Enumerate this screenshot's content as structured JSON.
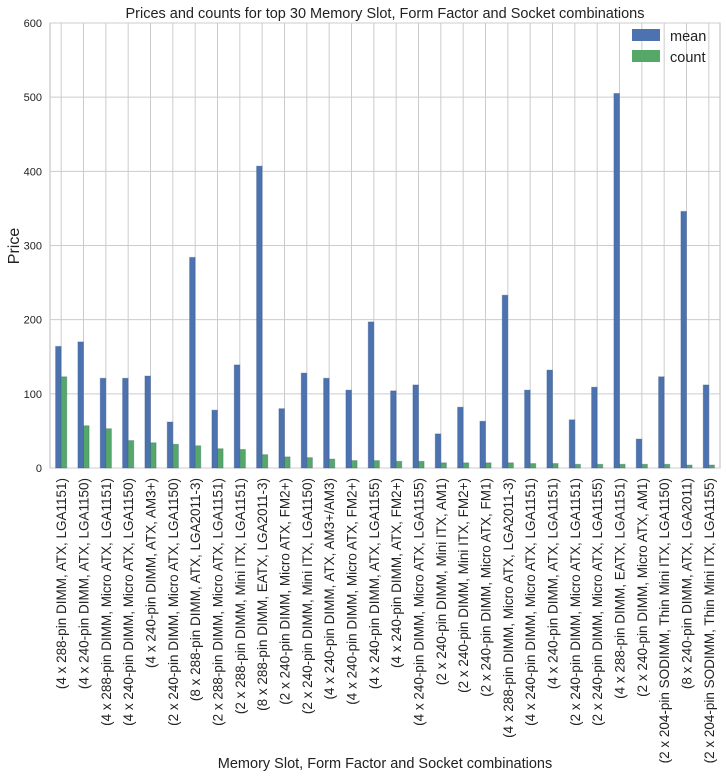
{
  "chart_data": {
    "type": "bar",
    "title": "Prices and counts for top 30 Memory Slot, Form Factor and Socket combinations",
    "xlabel": "Memory Slot, Form Factor and Socket combinations",
    "ylabel": "Price",
    "ylim": [
      0,
      600
    ],
    "yticks": [
      "0",
      "100",
      "200",
      "300",
      "400",
      "500",
      "600"
    ],
    "grid": true,
    "legend_position": "top-right",
    "categories": [
      "(4 x 288-pin DIMM, ATX, LGA1151)",
      "(4 x 240-pin DIMM, ATX, LGA1150)",
      "(4 x 288-pin DIMM, Micro ATX, LGA1151)",
      "(4 x 240-pin DIMM, Micro ATX, LGA1150)",
      "(4 x 240-pin DIMM, ATX, AM3+)",
      "(2 x 240-pin DIMM, Micro ATX, LGA1150)",
      "(8 x 288-pin DIMM, ATX, LGA2011-3)",
      "(2 x 288-pin DIMM, Micro ATX, LGA1151)",
      "(2 x 288-pin DIMM, Mini ITX, LGA1151)",
      "(8 x 288-pin DIMM, EATX, LGA2011-3)",
      "(2 x 240-pin DIMM, Micro ATX, FM2+)",
      "(2 x 240-pin DIMM, Mini ITX, LGA1150)",
      "(4 x 240-pin DIMM, ATX, AM3+/AM3)",
      "(4 x 240-pin DIMM, Micro ATX, FM2+)",
      "(4 x 240-pin DIMM, ATX, LGA1155)",
      "(4 x 240-pin DIMM, ATX, FM2+)",
      "(4 x 240-pin DIMM, Micro ATX, LGA1155)",
      "(2 x 240-pin DIMM, Mini ITX, AM1)",
      "(2 x 240-pin DIMM, Mini ITX, FM2+)",
      "(2 x 240-pin DIMM, Micro ATX, FM1)",
      "(4 x 288-pin DIMM, Micro ATX, LGA2011-3)",
      "(4 x 240-pin DIMM, Micro ATX, LGA1151)",
      "(4 x 240-pin DIMM, ATX, LGA1151)",
      "(2 x 240-pin DIMM, Micro ATX, LGA1151)",
      "(2 x 240-pin DIMM, Micro ATX, LGA1155)",
      "(4 x 288-pin DIMM, EATX, LGA1151)",
      "(2 x 240-pin DIMM, Micro ATX, AM1)",
      "(2 x 204-pin SODIMM, Thin Mini ITX, LGA1150)",
      "(8 x 240-pin DIMM, ATX, LGA2011)",
      "(2 x 204-pin SODIMM, Thin Mini ITX, LGA1155)"
    ],
    "series": [
      {
        "name": "mean",
        "color": "#4c72b0",
        "values": [
          164,
          170,
          121,
          121,
          124,
          62,
          284,
          78,
          139,
          407,
          80,
          128,
          121,
          105,
          197,
          104,
          112,
          46,
          82,
          63,
          233,
          105,
          132,
          65,
          109,
          505,
          39,
          123,
          346,
          112
        ]
      },
      {
        "name": "count",
        "color": "#55a868",
        "values": [
          123,
          57,
          53,
          37,
          34,
          32,
          30,
          26,
          25,
          18,
          15,
          14,
          12,
          10,
          10,
          9,
          9,
          7,
          7,
          7,
          7,
          6,
          6,
          5,
          5,
          5,
          5,
          5,
          4,
          4
        ]
      }
    ]
  }
}
